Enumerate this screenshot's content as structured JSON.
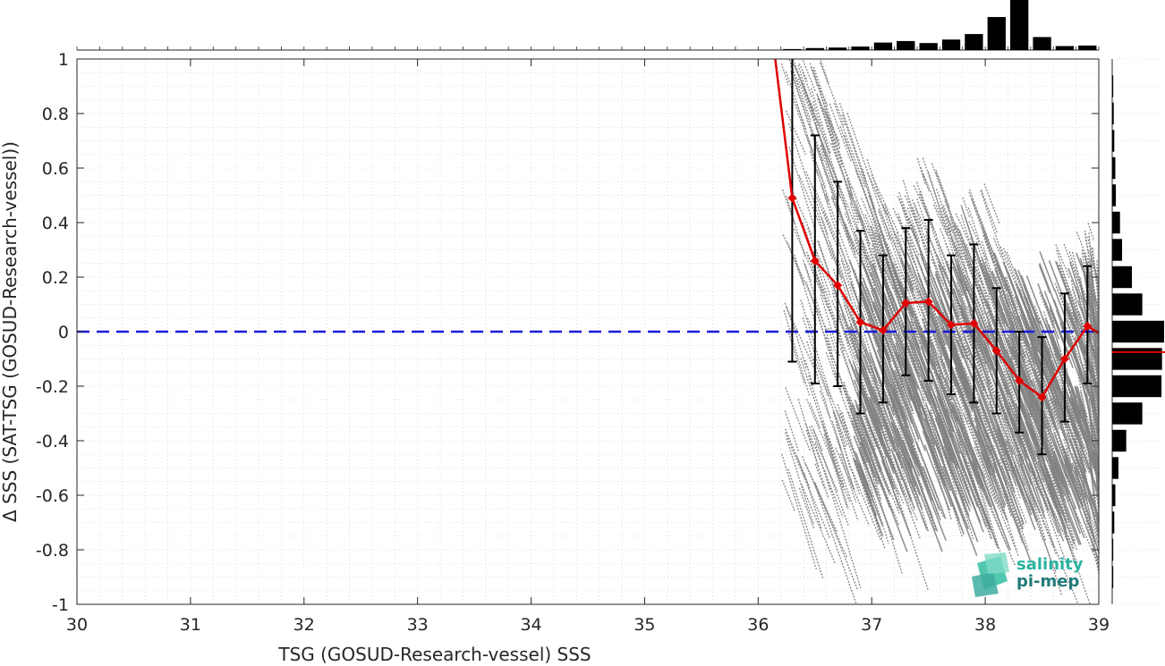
{
  "chart_data": {
    "type": "scatter",
    "xlabel": "TSG (GOSUD-Research-vessel) SSS",
    "ylabel": "Δ SSS (SAT-TSG (GOSUD-Research-vessel))",
    "xlim": [
      30,
      39
    ],
    "ylim": [
      -1,
      1
    ],
    "xticks": [
      "30",
      "31",
      "32",
      "33",
      "34",
      "35",
      "36",
      "37",
      "38",
      "39"
    ],
    "yticks": [
      "-1",
      "-0.8",
      "-0.6",
      "-0.4",
      "-0.2",
      "0",
      "0.2",
      "0.4",
      "0.6",
      "0.8",
      "1"
    ],
    "grid": true,
    "zero_line": {
      "y": 0,
      "color": "#1a1adb",
      "style": "dashed"
    },
    "scatter_color": "#808080",
    "mean_line_color": "#e00000",
    "errorbar_color": "#000000",
    "binned_stats": {
      "x": [
        36.3,
        36.5,
        36.7,
        36.9,
        37.1,
        37.3,
        37.5,
        37.7,
        37.9,
        38.1,
        38.3,
        38.5,
        38.7,
        38.9
      ],
      "mean": [
        0.49,
        0.26,
        0.17,
        0.035,
        0.005,
        0.105,
        0.11,
        0.025,
        0.03,
        -0.07,
        -0.18,
        -0.24,
        -0.1,
        0.02
      ],
      "lower": [
        -0.11,
        -0.19,
        -0.2,
        -0.3,
        -0.26,
        -0.16,
        -0.18,
        -0.23,
        -0.26,
        -0.3,
        -0.37,
        -0.45,
        -0.33,
        -0.19
      ],
      "upper": [
        1.08,
        0.72,
        0.55,
        0.37,
        0.28,
        0.38,
        0.41,
        0.28,
        0.32,
        0.16,
        0.0,
        -0.02,
        0.14,
        0.24
      ]
    },
    "mean_curve_start": {
      "x": 36.15,
      "y": 1.05
    },
    "top_histogram": {
      "bin_centers": [
        36.3,
        36.5,
        36.7,
        36.9,
        37.1,
        37.3,
        37.5,
        37.7,
        37.9,
        38.1,
        38.3,
        38.5,
        38.7,
        38.9
      ],
      "relative_counts": [
        0.02,
        0.04,
        0.05,
        0.07,
        0.15,
        0.18,
        0.14,
        0.21,
        0.32,
        0.66,
        1.0,
        0.26,
        0.08,
        0.09
      ]
    },
    "right_histogram": {
      "bin_centers": [
        0.9,
        0.8,
        0.7,
        0.6,
        0.5,
        0.4,
        0.3,
        0.2,
        0.1,
        0.0,
        -0.1,
        -0.2,
        -0.3,
        -0.4,
        -0.5,
        -0.6,
        -0.7,
        -0.8,
        -0.9
      ],
      "relative_counts": [
        0.02,
        0.03,
        0.04,
        0.06,
        0.07,
        0.15,
        0.19,
        0.38,
        0.58,
        1.0,
        0.96,
        0.95,
        0.58,
        0.27,
        0.12,
        0.06,
        0.04,
        0.02,
        0.02
      ],
      "mean_line_y": -0.075
    }
  },
  "logo": {
    "line1": "salinity",
    "line2": "pi-mep"
  }
}
